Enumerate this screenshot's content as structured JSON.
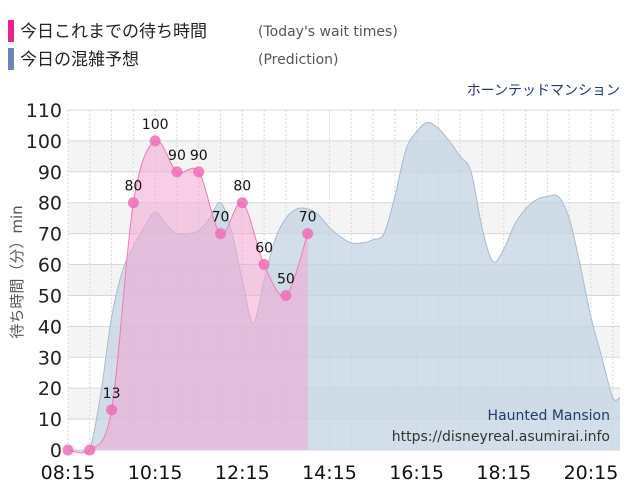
{
  "legend": {
    "today": {
      "label": "今日これまでの待ち時間",
      "sublabel": "(Today's wait times)"
    },
    "prediction": {
      "label": "今日の混雑予想",
      "sublabel": "(Prediction)"
    }
  },
  "subtitle": "ホーンテッドマンション",
  "watermark": {
    "name": "Haunted Mansion",
    "url": "https://disneyreal.asumirai.info"
  },
  "colors": {
    "today_fill": "#f3a6d3",
    "today_line": "#f07ab9",
    "today_marker": "#ee6fb6",
    "legend_today": "#e8238a",
    "legend_prediction": "#6a86b2",
    "prediction_fill": "#c3d3e1",
    "prediction_line": "#a9bccd",
    "grid": "#d8d8d8",
    "band": "#f4f4f4"
  },
  "chart_data": {
    "type": "area",
    "ylabel": "待ち時間（分）min",
    "ylim": [
      0,
      110
    ],
    "yticks": [
      0,
      10,
      20,
      30,
      40,
      50,
      60,
      70,
      80,
      90,
      100,
      110
    ],
    "xticks": [
      "08:15",
      "10:15",
      "12:15",
      "14:15",
      "16:15",
      "18:15",
      "20:15"
    ],
    "xlim": [
      "08:15",
      "20:55"
    ],
    "grid": true,
    "series": [
      {
        "name": "今日の混雑予想",
        "x": [
          "08:35",
          "08:45",
          "09:00",
          "09:15",
          "09:30",
          "09:45",
          "10:00",
          "10:15",
          "10:30",
          "10:45",
          "11:00",
          "11:15",
          "11:30",
          "11:45",
          "12:00",
          "12:15",
          "12:30",
          "12:45",
          "13:00",
          "13:15",
          "13:30",
          "13:45",
          "14:00",
          "14:15",
          "14:30",
          "14:45",
          "15:00",
          "15:15",
          "15:30",
          "15:45",
          "16:00",
          "16:15",
          "16:30",
          "16:45",
          "17:00",
          "17:15",
          "17:30",
          "17:45",
          "18:00",
          "18:15",
          "18:30",
          "18:45",
          "19:00",
          "19:15",
          "19:30",
          "19:45",
          "20:00",
          "20:15",
          "20:30",
          "20:45",
          "20:55"
        ],
        "values": [
          0,
          0,
          18,
          43,
          58,
          66,
          72,
          77,
          73,
          70,
          70,
          71,
          75,
          80,
          71,
          55,
          41,
          55,
          68,
          75,
          78,
          78,
          76,
          72,
          69,
          67,
          67,
          68,
          70,
          82,
          97,
          103,
          106,
          104,
          100,
          95,
          90,
          72,
          61,
          65,
          73,
          78,
          81,
          82,
          82,
          75,
          60,
          43,
          30,
          17,
          17
        ]
      },
      {
        "name": "今日これまでの待ち時間",
        "x": [
          "08:15",
          "08:45",
          "09:15",
          "09:45",
          "10:15",
          "10:45",
          "11:15",
          "11:45",
          "12:15",
          "12:45",
          "13:15",
          "13:45"
        ],
        "values": [
          0,
          0,
          13,
          80,
          100,
          90,
          90,
          70,
          80,
          60,
          50,
          70
        ],
        "labels": [
          "",
          "",
          "13",
          "80",
          "100",
          "90",
          "90",
          "70",
          "80",
          "60",
          "50",
          "70"
        ]
      }
    ]
  }
}
